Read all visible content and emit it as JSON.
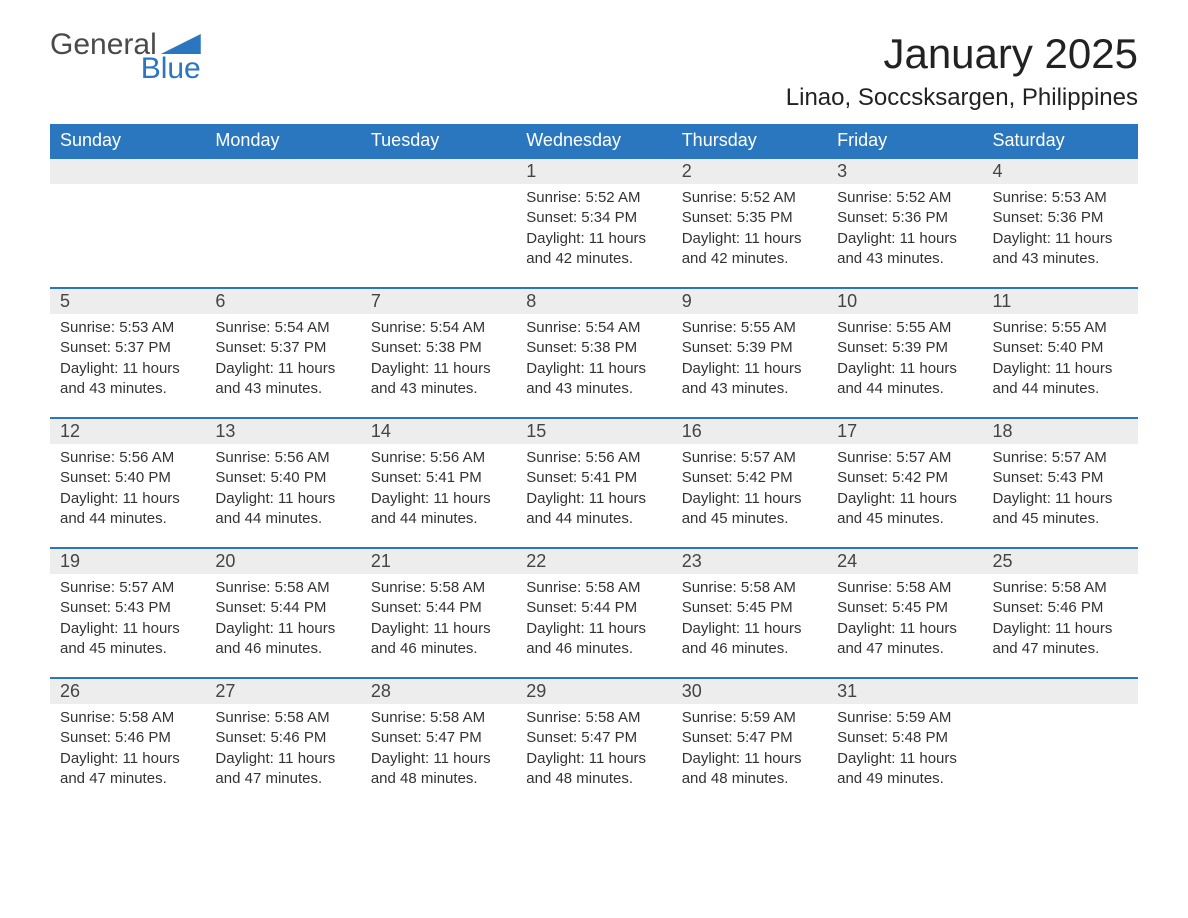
{
  "logo": {
    "part1": "General",
    "part2": "Blue"
  },
  "title": "January 2025",
  "location": "Linao, Soccsksargen, Philippines",
  "colors": {
    "header_bg": "#2a77bf",
    "header_text": "#ffffff",
    "daynum_bg": "#ededed",
    "row_border": "#2a77bf",
    "body_text": "#333333",
    "logo_gray": "#4a4a4a",
    "logo_blue": "#2a77bf",
    "page_bg": "#ffffff"
  },
  "typography": {
    "title_fontsize": 42,
    "location_fontsize": 24,
    "weekday_fontsize": 18,
    "daynum_fontsize": 18,
    "cell_fontsize": 15
  },
  "weekdays": [
    "Sunday",
    "Monday",
    "Tuesday",
    "Wednesday",
    "Thursday",
    "Friday",
    "Saturday"
  ],
  "weeks": [
    [
      null,
      null,
      null,
      {
        "d": "1",
        "sunrise": "Sunrise: 5:52 AM",
        "sunset": "Sunset: 5:34 PM",
        "day1": "Daylight: 11 hours",
        "day2": "and 42 minutes."
      },
      {
        "d": "2",
        "sunrise": "Sunrise: 5:52 AM",
        "sunset": "Sunset: 5:35 PM",
        "day1": "Daylight: 11 hours",
        "day2": "and 42 minutes."
      },
      {
        "d": "3",
        "sunrise": "Sunrise: 5:52 AM",
        "sunset": "Sunset: 5:36 PM",
        "day1": "Daylight: 11 hours",
        "day2": "and 43 minutes."
      },
      {
        "d": "4",
        "sunrise": "Sunrise: 5:53 AM",
        "sunset": "Sunset: 5:36 PM",
        "day1": "Daylight: 11 hours",
        "day2": "and 43 minutes."
      }
    ],
    [
      {
        "d": "5",
        "sunrise": "Sunrise: 5:53 AM",
        "sunset": "Sunset: 5:37 PM",
        "day1": "Daylight: 11 hours",
        "day2": "and 43 minutes."
      },
      {
        "d": "6",
        "sunrise": "Sunrise: 5:54 AM",
        "sunset": "Sunset: 5:37 PM",
        "day1": "Daylight: 11 hours",
        "day2": "and 43 minutes."
      },
      {
        "d": "7",
        "sunrise": "Sunrise: 5:54 AM",
        "sunset": "Sunset: 5:38 PM",
        "day1": "Daylight: 11 hours",
        "day2": "and 43 minutes."
      },
      {
        "d": "8",
        "sunrise": "Sunrise: 5:54 AM",
        "sunset": "Sunset: 5:38 PM",
        "day1": "Daylight: 11 hours",
        "day2": "and 43 minutes."
      },
      {
        "d": "9",
        "sunrise": "Sunrise: 5:55 AM",
        "sunset": "Sunset: 5:39 PM",
        "day1": "Daylight: 11 hours",
        "day2": "and 43 minutes."
      },
      {
        "d": "10",
        "sunrise": "Sunrise: 5:55 AM",
        "sunset": "Sunset: 5:39 PM",
        "day1": "Daylight: 11 hours",
        "day2": "and 44 minutes."
      },
      {
        "d": "11",
        "sunrise": "Sunrise: 5:55 AM",
        "sunset": "Sunset: 5:40 PM",
        "day1": "Daylight: 11 hours",
        "day2": "and 44 minutes."
      }
    ],
    [
      {
        "d": "12",
        "sunrise": "Sunrise: 5:56 AM",
        "sunset": "Sunset: 5:40 PM",
        "day1": "Daylight: 11 hours",
        "day2": "and 44 minutes."
      },
      {
        "d": "13",
        "sunrise": "Sunrise: 5:56 AM",
        "sunset": "Sunset: 5:40 PM",
        "day1": "Daylight: 11 hours",
        "day2": "and 44 minutes."
      },
      {
        "d": "14",
        "sunrise": "Sunrise: 5:56 AM",
        "sunset": "Sunset: 5:41 PM",
        "day1": "Daylight: 11 hours",
        "day2": "and 44 minutes."
      },
      {
        "d": "15",
        "sunrise": "Sunrise: 5:56 AM",
        "sunset": "Sunset: 5:41 PM",
        "day1": "Daylight: 11 hours",
        "day2": "and 44 minutes."
      },
      {
        "d": "16",
        "sunrise": "Sunrise: 5:57 AM",
        "sunset": "Sunset: 5:42 PM",
        "day1": "Daylight: 11 hours",
        "day2": "and 45 minutes."
      },
      {
        "d": "17",
        "sunrise": "Sunrise: 5:57 AM",
        "sunset": "Sunset: 5:42 PM",
        "day1": "Daylight: 11 hours",
        "day2": "and 45 minutes."
      },
      {
        "d": "18",
        "sunrise": "Sunrise: 5:57 AM",
        "sunset": "Sunset: 5:43 PM",
        "day1": "Daylight: 11 hours",
        "day2": "and 45 minutes."
      }
    ],
    [
      {
        "d": "19",
        "sunrise": "Sunrise: 5:57 AM",
        "sunset": "Sunset: 5:43 PM",
        "day1": "Daylight: 11 hours",
        "day2": "and 45 minutes."
      },
      {
        "d": "20",
        "sunrise": "Sunrise: 5:58 AM",
        "sunset": "Sunset: 5:44 PM",
        "day1": "Daylight: 11 hours",
        "day2": "and 46 minutes."
      },
      {
        "d": "21",
        "sunrise": "Sunrise: 5:58 AM",
        "sunset": "Sunset: 5:44 PM",
        "day1": "Daylight: 11 hours",
        "day2": "and 46 minutes."
      },
      {
        "d": "22",
        "sunrise": "Sunrise: 5:58 AM",
        "sunset": "Sunset: 5:44 PM",
        "day1": "Daylight: 11 hours",
        "day2": "and 46 minutes."
      },
      {
        "d": "23",
        "sunrise": "Sunrise: 5:58 AM",
        "sunset": "Sunset: 5:45 PM",
        "day1": "Daylight: 11 hours",
        "day2": "and 46 minutes."
      },
      {
        "d": "24",
        "sunrise": "Sunrise: 5:58 AM",
        "sunset": "Sunset: 5:45 PM",
        "day1": "Daylight: 11 hours",
        "day2": "and 47 minutes."
      },
      {
        "d": "25",
        "sunrise": "Sunrise: 5:58 AM",
        "sunset": "Sunset: 5:46 PM",
        "day1": "Daylight: 11 hours",
        "day2": "and 47 minutes."
      }
    ],
    [
      {
        "d": "26",
        "sunrise": "Sunrise: 5:58 AM",
        "sunset": "Sunset: 5:46 PM",
        "day1": "Daylight: 11 hours",
        "day2": "and 47 minutes."
      },
      {
        "d": "27",
        "sunrise": "Sunrise: 5:58 AM",
        "sunset": "Sunset: 5:46 PM",
        "day1": "Daylight: 11 hours",
        "day2": "and 47 minutes."
      },
      {
        "d": "28",
        "sunrise": "Sunrise: 5:58 AM",
        "sunset": "Sunset: 5:47 PM",
        "day1": "Daylight: 11 hours",
        "day2": "and 48 minutes."
      },
      {
        "d": "29",
        "sunrise": "Sunrise: 5:58 AM",
        "sunset": "Sunset: 5:47 PM",
        "day1": "Daylight: 11 hours",
        "day2": "and 48 minutes."
      },
      {
        "d": "30",
        "sunrise": "Sunrise: 5:59 AM",
        "sunset": "Sunset: 5:47 PM",
        "day1": "Daylight: 11 hours",
        "day2": "and 48 minutes."
      },
      {
        "d": "31",
        "sunrise": "Sunrise: 5:59 AM",
        "sunset": "Sunset: 5:48 PM",
        "day1": "Daylight: 11 hours",
        "day2": "and 49 minutes."
      },
      null
    ]
  ]
}
